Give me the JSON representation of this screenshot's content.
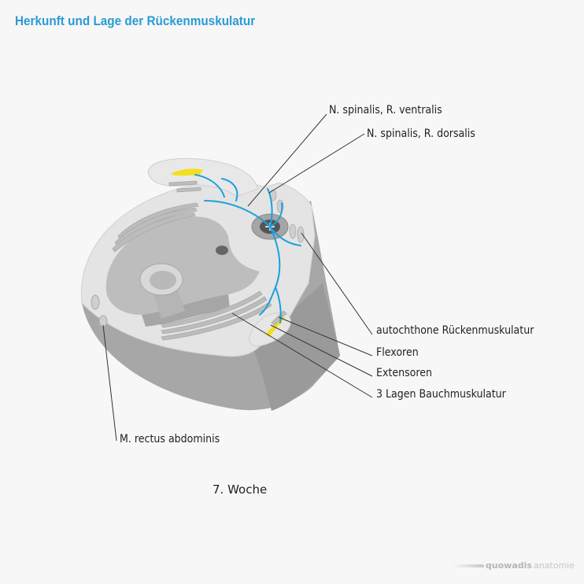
{
  "title": "Herkunft und Lage der Rückenmuskulatur",
  "labels": {
    "ventralis": "N. spinalis, R. ventralis",
    "dorsalis": "N. spinalis, R. dorsalis",
    "autochthone": "autochthone Rückenmuskulatur",
    "flexoren": "Flexoren",
    "extensoren": "Extensoren",
    "bauch": "3 Lagen Bauchmuskulatur",
    "rectus": "M. rectus abdominis"
  },
  "caption": "7. Woche",
  "logo": {
    "brand": "quowadis",
    "sub": "anatomie"
  },
  "colors": {
    "title": "#2a9bd3",
    "nerve": "#1aa0de",
    "muscle_yellow": "#f2df1e",
    "body_side": "#a7a7a7",
    "body_top": "#e4e4e4",
    "cavity": "#bdbdbd"
  }
}
